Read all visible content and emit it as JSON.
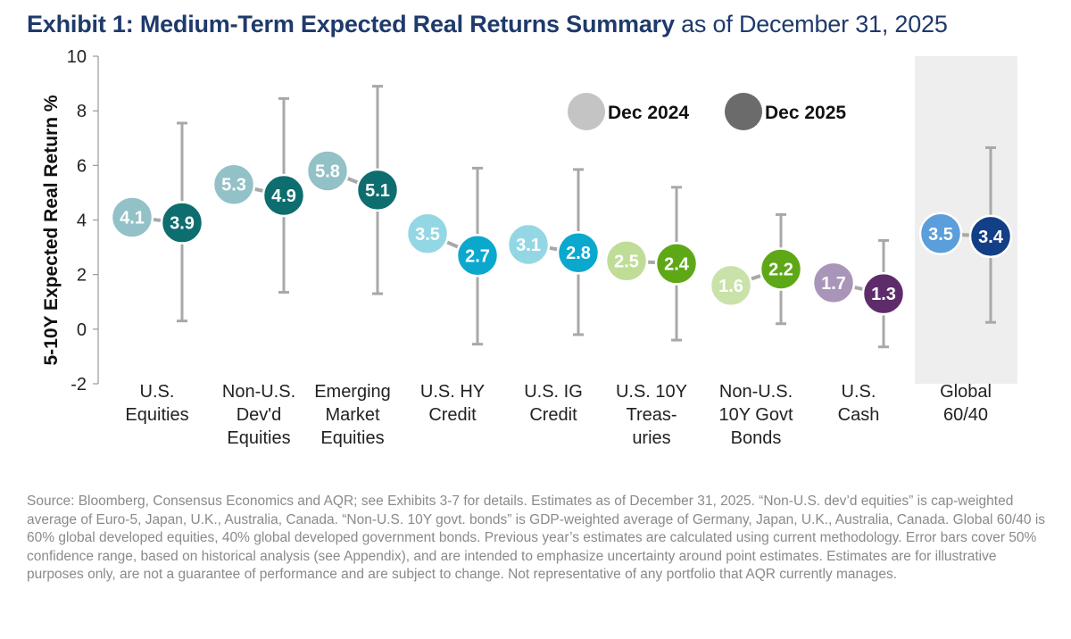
{
  "title": {
    "bold": "Exhibit 1: Medium-Term Expected Real Returns Summary",
    "light": "as of December 31, 2025"
  },
  "chart_data": {
    "type": "scatter",
    "ylabel": "5-10Y Expected Real Return %",
    "ylim": [
      -2,
      10
    ],
    "yticks": [
      -2,
      0,
      2,
      4,
      6,
      8,
      10
    ],
    "grid": false,
    "legend_position": "top-center",
    "categories": [
      [
        "U.S.",
        "Equities"
      ],
      [
        "Non-U.S.",
        "Dev'd",
        "Equities"
      ],
      [
        "Emerging",
        "Market",
        "Equities"
      ],
      [
        "U.S. HY",
        "Credit"
      ],
      [
        "U.S. IG",
        "Credit"
      ],
      [
        "U.S. 10Y",
        "Treas-",
        "uries"
      ],
      [
        "Non-U.S.",
        "10Y Govt",
        "Bonds"
      ],
      [
        "U.S.",
        "Cash"
      ],
      [
        "Global",
        "60/40"
      ]
    ],
    "highlighted_category": 8,
    "series": [
      {
        "name": "Dec 2024",
        "values": [
          4.1,
          5.3,
          5.8,
          3.5,
          3.1,
          2.5,
          1.6,
          1.7,
          3.5
        ],
        "labels": [
          "4.1",
          "5.3",
          "5.8",
          "3.5",
          "3.1",
          "2.5",
          "1.6",
          "1.7",
          "3.5"
        ],
        "legend_color": "#c4c4c4"
      },
      {
        "name": "Dec 2025",
        "values": [
          3.9,
          4.9,
          5.1,
          2.7,
          2.8,
          2.4,
          2.2,
          1.3,
          3.4
        ],
        "labels": [
          "3.9",
          "4.9",
          "5.1",
          "2.7",
          "2.8",
          "2.4",
          "2.2",
          "1.3",
          "3.4"
        ],
        "legend_color": "#6b6b6b",
        "error_low": [
          0.3,
          1.35,
          1.3,
          -0.55,
          -0.2,
          -0.4,
          0.2,
          -0.65,
          0.25
        ],
        "error_high": [
          7.55,
          8.45,
          8.9,
          5.9,
          5.85,
          5.2,
          4.2,
          3.25,
          6.65
        ]
      }
    ],
    "colors": {
      "dec2024": [
        "#92c1c7",
        "#92c1c7",
        "#92c1c7",
        "#93d7e4",
        "#93d7e4",
        "#bfdd96",
        "#c8e2a9",
        "#a895b8",
        "#5a9edb"
      ],
      "dec2025": [
        "#0e6d6f",
        "#0e6d6f",
        "#0e6d6f",
        "#0ba8ce",
        "#0ba8ce",
        "#5ea818",
        "#5ea818",
        "#5e2c6b",
        "#133f86"
      ],
      "error_bar": "#a8a8a8",
      "axis": "#999999",
      "highlight_band": "#eeeeee"
    }
  },
  "source_note": "Source: Bloomberg, Consensus Economics and AQR; see Exhibits 3-7 for details. Estimates as of December 31, 2025. “Non-U.S. dev’d equities” is cap-weighted average of Euro-5, Japan, U.K., Australia, Canada. “Non-U.S. 10Y govt. bonds” is GDP-weighted average of Germany, Japan, U.K., Australia, Canada. Global 60/40 is 60% global developed equities, 40% global developed government bonds. Previous year’s estimates are calculated using current methodology. Error bars cover 50% confidence range, based on historical analysis (see Appendix), and are intended to emphasize uncertainty around point estimates. Estimates are for illustrative purposes only, are not a guarantee of performance and are subject to change. Not representative of any portfolio that AQR currently manages."
}
